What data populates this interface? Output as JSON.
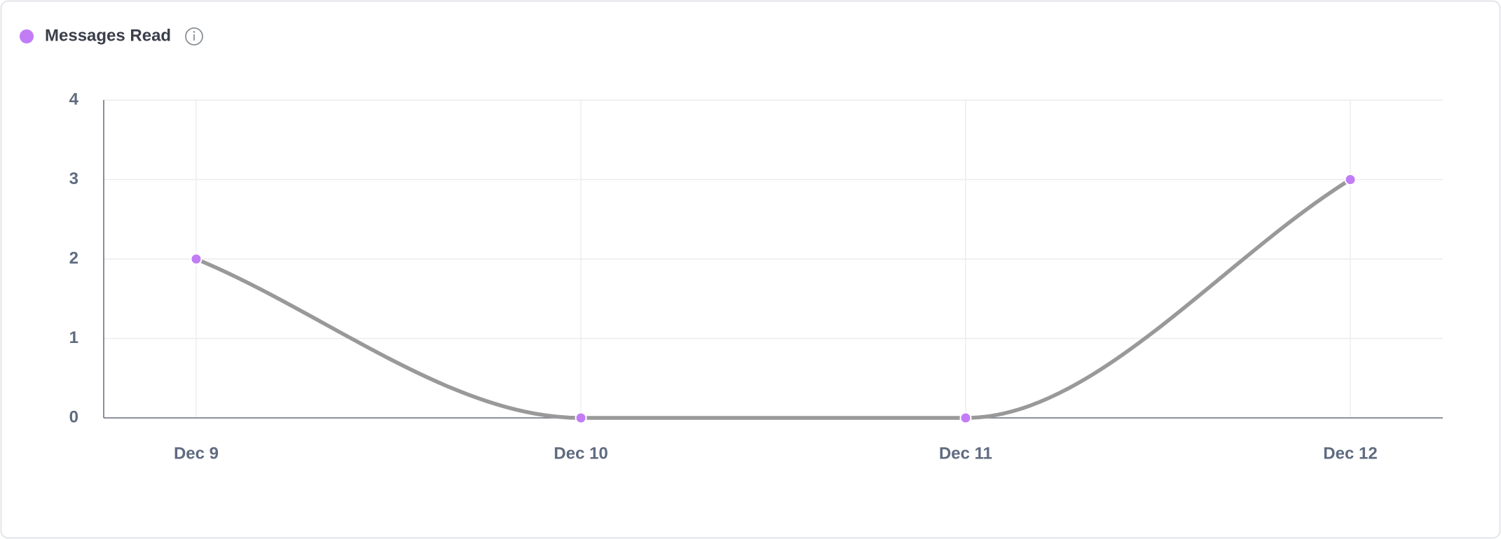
{
  "chart_data": {
    "type": "line",
    "categories": [
      "Dec 9",
      "Dec 10",
      "Dec 11",
      "Dec 12"
    ],
    "series": [
      {
        "name": "Messages Read",
        "color": "#c27cf5",
        "line_color": "#999999",
        "values": [
          2,
          0,
          0,
          3
        ]
      }
    ],
    "ylim": [
      0,
      4
    ],
    "yticks": [
      0,
      1,
      2,
      3,
      4
    ],
    "grid": true,
    "smooth": true
  }
}
